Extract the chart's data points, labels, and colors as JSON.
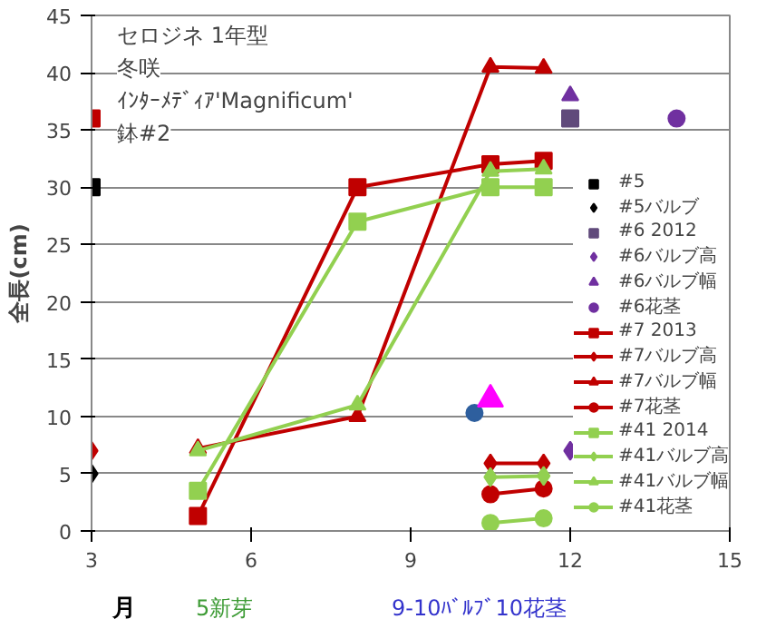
{
  "chart_data": {
    "type": "line",
    "title": "セロジネ  1年型",
    "subtitle": "冬咲",
    "ylabel": "全長(cm)",
    "xlabel": "月",
    "annotations": [
      "ｲﾝﾀｰﾒﾃﾞｨｱ'Magnificum'",
      "鉢#2",
      "5新芽",
      "9-10ﾊﾞﾙﾌﾞ10花茎"
    ],
    "xlim": [
      3,
      15
    ],
    "xticks": [
      3,
      6,
      9,
      12,
      15
    ],
    "ylim": [
      0,
      45
    ],
    "yticks": [
      0,
      5,
      10,
      15,
      20,
      25,
      30,
      35,
      40,
      45
    ],
    "grid": "y",
    "legend": "right",
    "series": [
      {
        "name": "#5",
        "color": "#000000",
        "marker": "square",
        "x": [
          3
        ],
        "values": [
          30
        ]
      },
      {
        "name": "#5バルブ",
        "color": "#000000",
        "marker": "diamond",
        "x": [
          3
        ],
        "values": [
          5
        ]
      },
      {
        "name": "#6 2012",
        "color": "#604a7b",
        "marker": "square",
        "x": [
          12
        ],
        "values": [
          36
        ]
      },
      {
        "name": "#6バルブ高",
        "color": "#7030a0",
        "marker": "diamond",
        "x": [
          12
        ],
        "values": [
          7
        ]
      },
      {
        "name": "#6バルブ幅",
        "color": "#7030a0",
        "marker": "triangle",
        "x": [
          12
        ],
        "values": [
          38
        ]
      },
      {
        "name": "#6花茎",
        "color": "#7030a0",
        "marker": "circle",
        "x": [
          14
        ],
        "values": [
          36
        ]
      },
      {
        "name": "#7 2013",
        "color": "#c00000",
        "marker": "square",
        "x": [
          3,
          4,
          5,
          8,
          10.5,
          11.5
        ],
        "values": [
          36,
          null,
          1.3,
          30,
          32,
          32.3
        ]
      },
      {
        "name": "#7バルブ高",
        "color": "#c00000",
        "marker": "diamond",
        "x": [
          3,
          4,
          10.5,
          11.5
        ],
        "values": [
          7,
          null,
          5.9,
          5.9
        ]
      },
      {
        "name": "#7バルブ幅",
        "color": "#c00000",
        "marker": "triangle",
        "x": [
          5,
          8,
          10.5,
          11.5
        ],
        "values": [
          7.2,
          10,
          40.5,
          40.4
        ]
      },
      {
        "name": "#7花茎",
        "color": "#c00000",
        "marker": "circle",
        "x": [
          10.5,
          11.5
        ],
        "values": [
          3.2,
          3.7
        ]
      },
      {
        "name": "#41 2014",
        "color": "#92d050",
        "marker": "square",
        "x": [
          5,
          8,
          10.5,
          11.5
        ],
        "values": [
          3.5,
          27,
          30,
          30
        ]
      },
      {
        "name": "#41バルブ高",
        "color": "#92d050",
        "marker": "diamond",
        "x": [
          10.5,
          11.5
        ],
        "values": [
          4.7,
          4.8
        ]
      },
      {
        "name": "#41バルブ幅",
        "color": "#92d050",
        "marker": "triangle",
        "x": [
          5,
          8,
          10.5,
          11.5
        ],
        "values": [
          7,
          11,
          31.4,
          31.6
        ]
      },
      {
        "name": "#41花茎",
        "color": "#92d050",
        "marker": "circle",
        "x": [
          10.5,
          11.5
        ],
        "values": [
          0.7,
          1.1
        ]
      },
      {
        "type": "scatter",
        "color": "#2e5f9e",
        "marker": "circle",
        "x": [
          10.2
        ],
        "values": [
          10.3
        ]
      },
      {
        "type": "scatter",
        "color": "#ff00ff",
        "marker": "triangle",
        "x": [
          10.5
        ],
        "values": [
          11.5
        ]
      }
    ]
  }
}
